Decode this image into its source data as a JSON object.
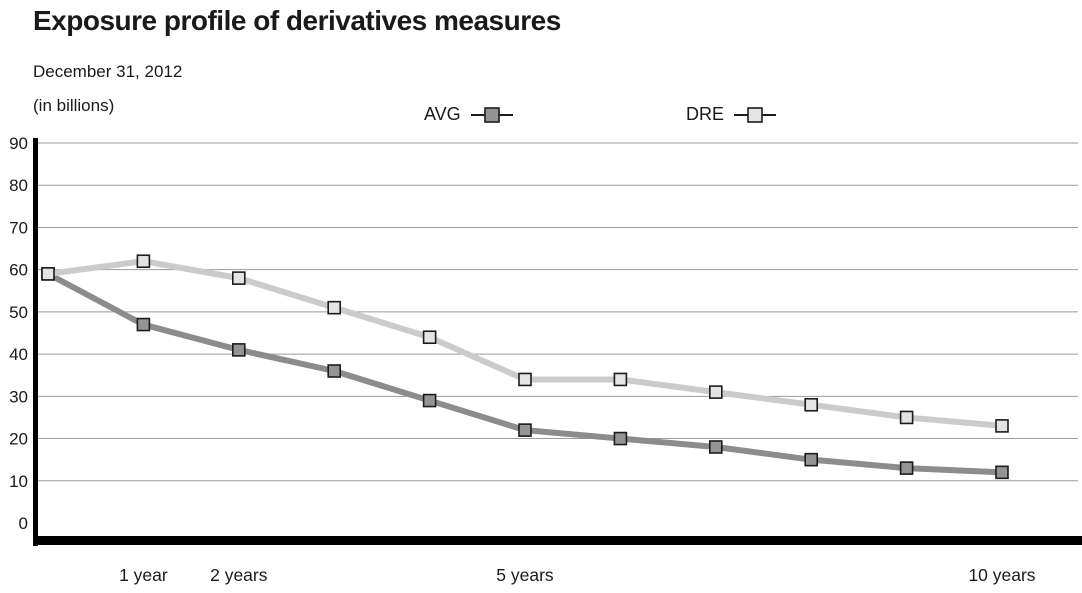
{
  "header": {
    "title": "Exposure profile of derivatives measures",
    "date_line": "December 31, 2012",
    "units_line": "(in billions)"
  },
  "chart_data": {
    "type": "line",
    "title": "Exposure profile of derivatives measures",
    "subtitle": "December 31, 2012 (in billions)",
    "x": [
      0,
      1,
      2,
      3,
      4,
      5,
      6,
      7,
      8,
      9,
      10
    ],
    "xlabel": "years",
    "ylabel": "",
    "ylim": [
      0,
      90
    ],
    "y_ticks": [
      0,
      10,
      20,
      30,
      40,
      50,
      60,
      70,
      80,
      90
    ],
    "x_tick_labels": [
      {
        "x": 1,
        "label": "1 year"
      },
      {
        "x": 2,
        "label": "2 years"
      },
      {
        "x": 5,
        "label": "5 years"
      },
      {
        "x": 10,
        "label": "10 years"
      }
    ],
    "grid": true,
    "legend_position": "top",
    "colors": {
      "avg_line": "#8c8c8c",
      "avg_marker_fill": "#949494",
      "dre_line": "#cbcbcb",
      "dre_marker_fill": "#e4e4e4",
      "marker_border": "#1c1c1c",
      "gridline": "#9b9b9b",
      "axis": "#000000"
    },
    "series": [
      {
        "name": "AVG",
        "line_color": "#8c8c8c",
        "marker_fill": "#949494",
        "values": [
          59,
          47,
          41,
          36,
          29,
          22,
          20,
          18,
          15,
          13,
          12
        ]
      },
      {
        "name": "DRE",
        "line_color": "#cbcbcb",
        "marker_fill": "#e4e4e4",
        "values": [
          59,
          62,
          58,
          51,
          44,
          34,
          34,
          31,
          28,
          25,
          23
        ]
      }
    ]
  }
}
